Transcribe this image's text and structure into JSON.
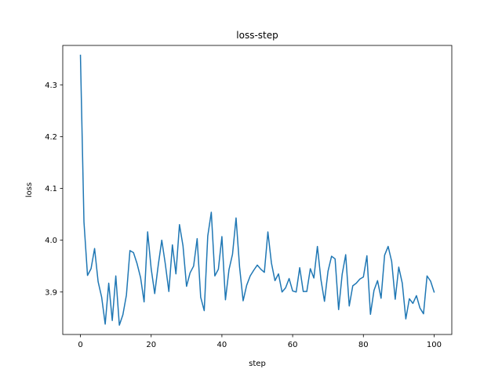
{
  "chart_data": {
    "type": "line",
    "title": "loss-step",
    "xlabel": "step",
    "ylabel": "loss",
    "xlim": [
      -5,
      105
    ],
    "ylim": [
      3.818,
      4.376
    ],
    "x_ticks": [
      0,
      20,
      40,
      60,
      80,
      100
    ],
    "x_tick_labels": [
      "0",
      "20",
      "40",
      "60",
      "80",
      "100"
    ],
    "y_ticks": [
      3.9,
      4.0,
      4.1,
      4.2,
      4.3
    ],
    "y_tick_labels": [
      "3.9",
      "4.0",
      "4.1",
      "4.2",
      "4.3"
    ],
    "grid": false,
    "series": [
      {
        "color": "#1f77b4",
        "x": [
          0,
          1,
          2,
          3,
          4,
          5,
          6,
          7,
          8,
          9,
          10,
          11,
          12,
          13,
          14,
          15,
          16,
          17,
          18,
          19,
          20,
          21,
          22,
          23,
          24,
          25,
          26,
          27,
          28,
          29,
          30,
          31,
          32,
          33,
          34,
          35,
          36,
          37,
          38,
          39,
          40,
          41,
          42,
          43,
          44,
          45,
          46,
          47,
          48,
          49,
          50,
          51,
          52,
          53,
          54,
          55,
          56,
          57,
          58,
          59,
          60,
          61,
          62,
          63,
          64,
          65,
          66,
          67,
          68,
          69,
          70,
          71,
          72,
          73,
          74,
          75,
          76,
          77,
          78,
          79,
          80,
          81,
          82,
          83,
          84,
          85,
          86,
          87,
          88,
          89,
          90,
          91,
          92,
          93,
          94,
          95,
          96,
          97,
          98,
          99,
          100
        ],
        "y": [
          4.357,
          4.035,
          3.932,
          3.945,
          3.984,
          3.92,
          3.89,
          3.838,
          3.917,
          3.845,
          3.931,
          3.836,
          3.856,
          3.894,
          3.98,
          3.976,
          3.955,
          3.928,
          3.881,
          4.016,
          3.945,
          3.897,
          3.952,
          4.0,
          3.954,
          3.901,
          3.991,
          3.935,
          4.03,
          3.989,
          3.911,
          3.937,
          3.95,
          4.003,
          3.89,
          3.864,
          4.008,
          4.054,
          3.931,
          3.944,
          4.007,
          3.885,
          3.943,
          3.973,
          4.043,
          3.948,
          3.883,
          3.913,
          3.931,
          3.942,
          3.952,
          3.944,
          3.938,
          4.016,
          3.956,
          3.922,
          3.935,
          3.9,
          3.908,
          3.926,
          3.902,
          3.9,
          3.947,
          3.901,
          3.901,
          3.945,
          3.927,
          3.988,
          3.924,
          3.882,
          3.94,
          3.969,
          3.964,
          3.866,
          3.934,
          3.972,
          3.873,
          3.912,
          3.917,
          3.925,
          3.929,
          3.97,
          3.857,
          3.903,
          3.922,
          3.888,
          3.971,
          3.988,
          3.959,
          3.886,
          3.948,
          3.917,
          3.848,
          3.887,
          3.878,
          3.893,
          3.869,
          3.858,
          3.931,
          3.921,
          3.9
        ]
      }
    ]
  }
}
